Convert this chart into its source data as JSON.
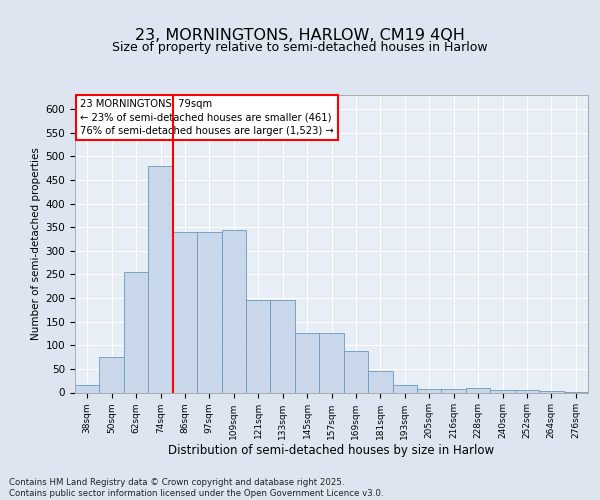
{
  "title1": "23, MORNINGTONS, HARLOW, CM19 4QH",
  "title2": "Size of property relative to semi-detached houses in Harlow",
  "xlabel": "Distribution of semi-detached houses by size in Harlow",
  "ylabel": "Number of semi-detached properties",
  "categories": [
    "38sqm",
    "50sqm",
    "62sqm",
    "74sqm",
    "86sqm",
    "97sqm",
    "109sqm",
    "121sqm",
    "133sqm",
    "145sqm",
    "157sqm",
    "169sqm",
    "181sqm",
    "193sqm",
    "205sqm",
    "216sqm",
    "228sqm",
    "240sqm",
    "252sqm",
    "264sqm",
    "276sqm"
  ],
  "bar_values": [
    15,
    75,
    255,
    480,
    340,
    340,
    345,
    195,
    195,
    125,
    125,
    88,
    46,
    15,
    8,
    8,
    10,
    6,
    5,
    3,
    2
  ],
  "bar_color": "#c8d8ea",
  "bar_edge_color": "#6a9abf",
  "vline_x_idx": 3.5,
  "vline_color": "red",
  "annotation_text": "23 MORNINGTONS: 79sqm\n← 23% of semi-detached houses are smaller (461)\n76% of semi-detached houses are larger (1,523) →",
  "ylim": [
    0,
    630
  ],
  "yticks": [
    0,
    50,
    100,
    150,
    200,
    250,
    300,
    350,
    400,
    450,
    500,
    550,
    600
  ],
  "footer": "Contains HM Land Registry data © Crown copyright and database right 2025.\nContains public sector information licensed under the Open Government Licence v3.0.",
  "bg_color": "#dde6f0",
  "plot_bg_color": "#e8eef6"
}
